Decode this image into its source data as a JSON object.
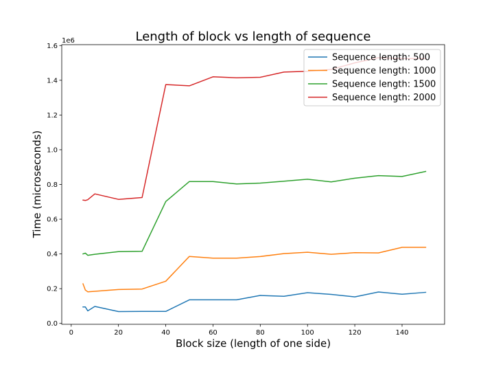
{
  "chart_data": {
    "type": "line",
    "title": "Length of block vs length of sequence",
    "xlabel": "Block size (length of one side)",
    "ylabel": "Time (microseconds)",
    "y_offset_label": "1e6",
    "xlim": [
      -4,
      158
    ],
    "ylim": [
      -5000,
      1605000
    ],
    "xticks": [
      0,
      20,
      40,
      60,
      80,
      100,
      120,
      140
    ],
    "xtick_labels": [
      "0",
      "20",
      "40",
      "60",
      "80",
      "100",
      "120",
      "140"
    ],
    "yticks": [
      0,
      200000,
      400000,
      600000,
      800000,
      1000000,
      1200000,
      1400000,
      1600000
    ],
    "ytick_labels": [
      "0.0",
      "0.2",
      "0.4",
      "0.6",
      "0.8",
      "1.0",
      "1.2",
      "1.4",
      "1.6"
    ],
    "grid": false,
    "legend_position": "top-right",
    "x": [
      5,
      6,
      7,
      10,
      20,
      30,
      40,
      50,
      60,
      70,
      80,
      90,
      100,
      110,
      120,
      130,
      140,
      150
    ],
    "series": [
      {
        "name": "Sequence length: 500",
        "color": "#1f77b4",
        "values": [
          95000,
          95000,
          72000,
          98000,
          68000,
          69000,
          69000,
          136000,
          136000,
          136000,
          161000,
          156000,
          177000,
          167000,
          153000,
          181000,
          168000,
          179000
        ]
      },
      {
        "name": "Sequence length: 1000",
        "color": "#ff7f0e",
        "values": [
          228000,
          192000,
          182000,
          185000,
          195000,
          198000,
          243000,
          386000,
          376000,
          376000,
          385000,
          402000,
          410000,
          398000,
          407000,
          406000,
          438000,
          438000
        ]
      },
      {
        "name": "Sequence length: 1500",
        "color": "#2ca02c",
        "values": [
          400000,
          405000,
          392000,
          398000,
          413000,
          415000,
          702000,
          817000,
          817000,
          803000,
          808000,
          819000,
          830000,
          815000,
          836000,
          851000,
          846000,
          875000
        ]
      },
      {
        "name": "Sequence length: 2000",
        "color": "#d62728",
        "values": [
          710000,
          708000,
          712000,
          746000,
          714000,
          725000,
          1375000,
          1368000,
          1420000,
          1414000,
          1417000,
          1447000,
          1452000,
          1462000,
          1500000,
          1530000,
          1525000,
          1525000
        ]
      }
    ]
  }
}
